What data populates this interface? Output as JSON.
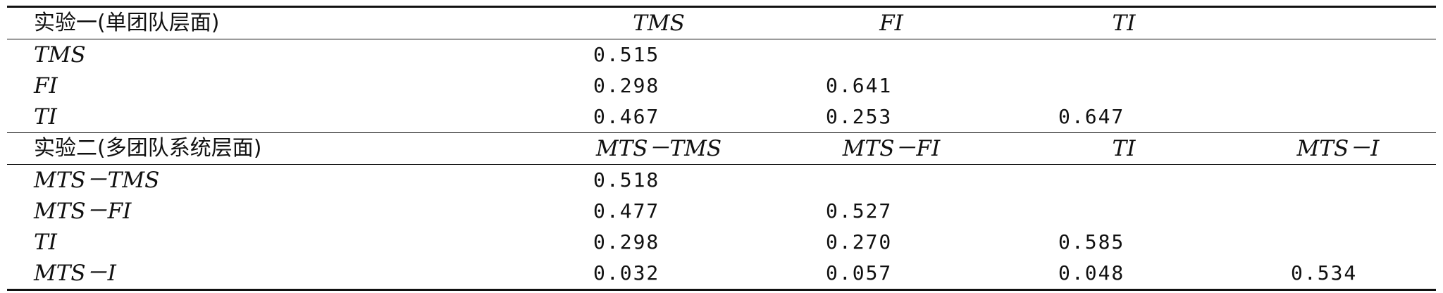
{
  "table": {
    "section1": {
      "heading": "实验一(单团队层面)",
      "columns": [
        "TMS",
        "FI",
        "TI",
        ""
      ],
      "rows": [
        {
          "label": "TMS",
          "values": [
            "0.515",
            "",
            "",
            ""
          ]
        },
        {
          "label": "FI",
          "values": [
            "0.298",
            "0.641",
            "",
            ""
          ]
        },
        {
          "label": "TI",
          "values": [
            "0.467",
            "0.253",
            "0.647",
            ""
          ]
        }
      ]
    },
    "section2": {
      "heading": "实验二(多团队系统层面)",
      "columns": [
        "MTS－TMS",
        "MTS－FI",
        "TI",
        "MTS－I"
      ],
      "rows": [
        {
          "label": "MTS－TMS",
          "values": [
            "0.518",
            "",
            "",
            ""
          ]
        },
        {
          "label": "MTS－FI",
          "values": [
            "0.477",
            "0.527",
            "",
            ""
          ]
        },
        {
          "label": "TI",
          "values": [
            "0.298",
            "0.270",
            "0.585",
            ""
          ]
        },
        {
          "label": "MTS－I",
          "values": [
            "0.032",
            "0.057",
            "0.048",
            "0.534"
          ]
        }
      ]
    }
  }
}
